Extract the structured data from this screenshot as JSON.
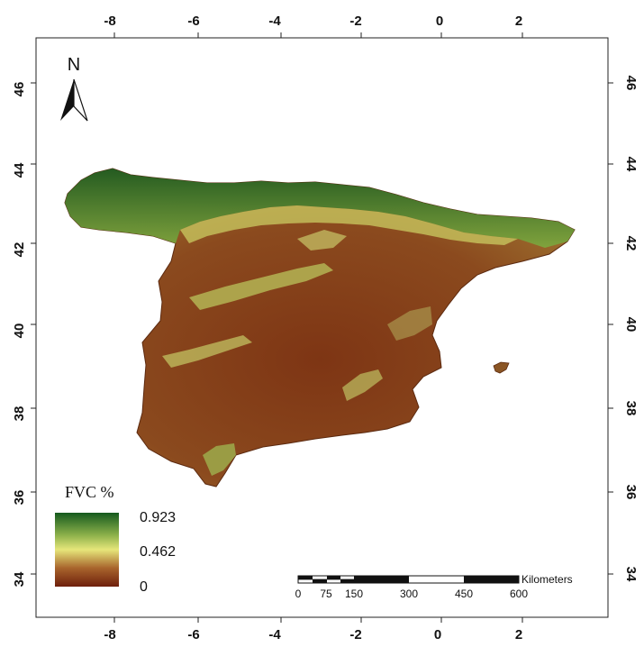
{
  "map": {
    "lon_ticks": [
      "-8",
      "-6",
      "-4",
      "-2",
      "0",
      "2"
    ],
    "lat_ticks": [
      "46",
      "44",
      "42",
      "40",
      "38",
      "36",
      "34"
    ]
  },
  "north_arrow": {
    "label": "N"
  },
  "legend": {
    "title": "FVC %",
    "max": "0.923",
    "mid": "0.462",
    "min": "0",
    "colors": {
      "high": "#155a1e",
      "mid": "#e6e67a",
      "low": "#6e1f0c"
    }
  },
  "scale_bar": {
    "labels": [
      "0",
      "75",
      "150",
      "300",
      "450",
      "600"
    ],
    "unit": "Kilometers"
  }
}
